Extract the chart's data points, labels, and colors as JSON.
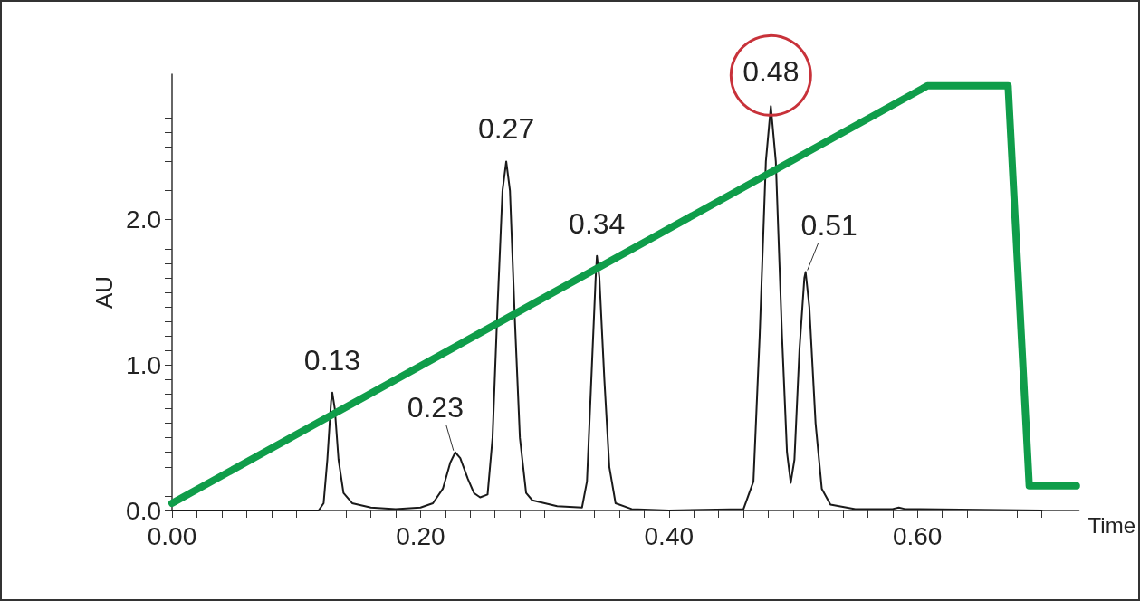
{
  "chart_data": {
    "type": "line",
    "xlabel": "Time",
    "ylabel": "AU",
    "xlim": [
      0,
      0.73
    ],
    "ylim": [
      0,
      3.0
    ],
    "xticks": [
      {
        "value": 0,
        "label": "0.00"
      },
      {
        "value": 0.02,
        "label": null
      },
      {
        "value": 0.04,
        "label": null
      },
      {
        "value": 0.06,
        "label": null
      },
      {
        "value": 0.08,
        "label": null
      },
      {
        "value": 0.1,
        "label": null
      },
      {
        "value": 0.12,
        "label": null
      },
      {
        "value": 0.14,
        "label": null
      },
      {
        "value": 0.16,
        "label": null
      },
      {
        "value": 0.18,
        "label": null
      },
      {
        "value": 0.2,
        "label": "0.20"
      },
      {
        "value": 0.22,
        "label": null
      },
      {
        "value": 0.24,
        "label": null
      },
      {
        "value": 0.26,
        "label": null
      },
      {
        "value": 0.28,
        "label": null
      },
      {
        "value": 0.3,
        "label": null
      },
      {
        "value": 0.32,
        "label": null
      },
      {
        "value": 0.34,
        "label": null
      },
      {
        "value": 0.36,
        "label": null
      },
      {
        "value": 0.38,
        "label": null
      },
      {
        "value": 0.4,
        "label": "0.40"
      },
      {
        "value": 0.42,
        "label": null
      },
      {
        "value": 0.44,
        "label": null
      },
      {
        "value": 0.46,
        "label": null
      },
      {
        "value": 0.48,
        "label": null
      },
      {
        "value": 0.5,
        "label": null
      },
      {
        "value": 0.52,
        "label": null
      },
      {
        "value": 0.54,
        "label": null
      },
      {
        "value": 0.56,
        "label": null
      },
      {
        "value": 0.58,
        "label": null
      },
      {
        "value": 0.6,
        "label": "0.60"
      },
      {
        "value": 0.62,
        "label": null
      },
      {
        "value": 0.64,
        "label": null
      },
      {
        "value": 0.66,
        "label": null
      },
      {
        "value": 0.68,
        "label": null
      },
      {
        "value": 0.7,
        "label": null
      }
    ],
    "yticks": [
      {
        "value": 0,
        "label": "0.0"
      },
      {
        "value": 0.1,
        "label": null
      },
      {
        "value": 0.2,
        "label": null
      },
      {
        "value": 0.3,
        "label": null
      },
      {
        "value": 0.4,
        "label": null
      },
      {
        "value": 0.5,
        "label": null
      },
      {
        "value": 0.6,
        "label": null
      },
      {
        "value": 0.7,
        "label": null
      },
      {
        "value": 0.8,
        "label": null
      },
      {
        "value": 0.9,
        "label": null
      },
      {
        "value": 1.0,
        "label": "1.0"
      },
      {
        "value": 1.1,
        "label": null
      },
      {
        "value": 1.2,
        "label": null
      },
      {
        "value": 1.3,
        "label": null
      },
      {
        "value": 1.4,
        "label": null
      },
      {
        "value": 1.5,
        "label": null
      },
      {
        "value": 1.6,
        "label": null
      },
      {
        "value": 1.7,
        "label": null
      },
      {
        "value": 1.8,
        "label": null
      },
      {
        "value": 1.9,
        "label": null
      },
      {
        "value": 2.0,
        "label": "2.0"
      },
      {
        "value": 2.1,
        "label": null
      },
      {
        "value": 2.2,
        "label": null
      },
      {
        "value": 2.3,
        "label": null
      },
      {
        "value": 2.4,
        "label": null
      },
      {
        "value": 2.5,
        "label": null
      },
      {
        "value": 2.6,
        "label": null
      },
      {
        "value": 2.7,
        "label": null
      }
    ],
    "grid": false,
    "marker": "none",
    "line_style": "solid",
    "series": [
      {
        "color": "#1a1a1a",
        "x": [
          0,
          0.1,
          0.118,
          0.122,
          0.125,
          0.128,
          0.129,
          0.131,
          0.134,
          0.138,
          0.145,
          0.16,
          0.18,
          0.2,
          0.21,
          0.218,
          0.224,
          0.228,
          0.232,
          0.238,
          0.243,
          0.248,
          0.254,
          0.258,
          0.262,
          0.266,
          0.269,
          0.272,
          0.276,
          0.28,
          0.285,
          0.29,
          0.3,
          0.31,
          0.33,
          0.334,
          0.338,
          0.341,
          0.342,
          0.344,
          0.348,
          0.352,
          0.357,
          0.37,
          0.4,
          0.46,
          0.468,
          0.473,
          0.478,
          0.482,
          0.486,
          0.491,
          0.495,
          0.498,
          0.501,
          0.505,
          0.509,
          0.51,
          0.513,
          0.518,
          0.523,
          0.53,
          0.55,
          0.58,
          0.585,
          0.59,
          0.7
        ],
        "values": [
          0,
          0,
          0,
          0.05,
          0.35,
          0.75,
          0.81,
          0.7,
          0.35,
          0.12,
          0.05,
          0.02,
          0.01,
          0.02,
          0.05,
          0.15,
          0.33,
          0.4,
          0.36,
          0.22,
          0.12,
          0.09,
          0.11,
          0.5,
          1.4,
          2.2,
          2.4,
          2.2,
          1.3,
          0.5,
          0.12,
          0.07,
          0.05,
          0.03,
          0.02,
          0.2,
          1.0,
          1.6,
          1.75,
          1.6,
          0.9,
          0.3,
          0.05,
          0.01,
          0,
          0.01,
          0.2,
          1.2,
          2.4,
          2.78,
          2.4,
          1.2,
          0.4,
          0.19,
          0.35,
          1.1,
          1.6,
          1.64,
          1.4,
          0.6,
          0.15,
          0.04,
          0.01,
          0.01,
          0.02,
          0.01,
          0
        ]
      },
      {
        "color": "#0f9d4a",
        "x": [
          0,
          0.608,
          0.673,
          0.69,
          0.728
        ],
        "values": [
          0.05,
          2.92,
          2.92,
          0.17,
          0.17
        ]
      }
    ],
    "annotations": [
      {
        "text": "0.13",
        "x": 0.129,
        "y": 0.81
      },
      {
        "text": "0.23",
        "x": 0.228,
        "y": 0.4
      },
      {
        "text": "0.27",
        "x": 0.269,
        "y": 2.4
      },
      {
        "text": "0.34",
        "x": 0.342,
        "y": 1.75
      },
      {
        "text": "0.48",
        "x": 0.482,
        "y": 2.78
      },
      {
        "text": "0.51",
        "x": 0.51,
        "y": 1.64
      }
    ]
  }
}
